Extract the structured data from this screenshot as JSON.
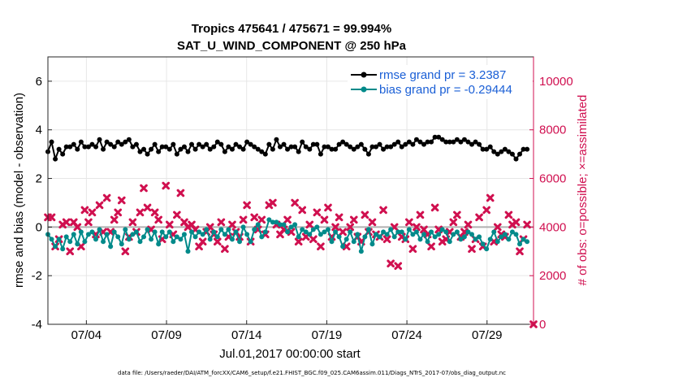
{
  "chart_data": {
    "type": "line",
    "title_line1": "Tropics 475641 / 475671 = 99.994%",
    "title_line2": "SAT_U_WIND_COMPONENT @ 250 hPa",
    "ylabel_left": "rmse and bias (model - observation)",
    "ylabel_right": "# of obs: o=possible; ×=assimilated",
    "xlabel": "Jul.01,2017 00:00:00 start",
    "footer": "data file: /Users/raeder/DAI/ATM_forcXX/CAM6_setup/f.e21.FHIST_BGC.f09_025.CAM6assim.011/Diags_NTrS_2017-07/obs_diag_output.nc",
    "xlim": [
      1.6,
      31.9
    ],
    "ylim_left": [
      -4,
      7
    ],
    "ylim_right": [
      0,
      11000
    ],
    "yticks_left": [
      -4,
      -2,
      0,
      2,
      4,
      6
    ],
    "yticks_right": [
      0,
      2000,
      4000,
      6000,
      8000,
      10000
    ],
    "xticks": [
      {
        "value": 4,
        "label": "07/04"
      },
      {
        "value": 9,
        "label": "07/09"
      },
      {
        "value": 14,
        "label": "07/14"
      },
      {
        "value": 19,
        "label": "07/19"
      },
      {
        "value": 24,
        "label": "07/24"
      },
      {
        "value": 29,
        "label": "07/29"
      }
    ],
    "grid": true,
    "legend_position": "top-right",
    "series": [
      {
        "name": "rmse grand pr = 3.2387",
        "axis": "left",
        "color": "#000000",
        "marker": "circle",
        "x": [
          1.6,
          1.83,
          2.06,
          2.29,
          2.52,
          2.75,
          2.98,
          3.21,
          3.44,
          3.67,
          3.9,
          4.13,
          4.36,
          4.59,
          4.82,
          5.05,
          5.28,
          5.51,
          5.74,
          5.97,
          6.2,
          6.43,
          6.66,
          6.89,
          7.12,
          7.35,
          7.58,
          7.81,
          8.04,
          8.27,
          8.5,
          8.73,
          8.96,
          9.19,
          9.42,
          9.65,
          9.88,
          10.11,
          10.34,
          10.57,
          10.8,
          11.03,
          11.26,
          11.49,
          11.72,
          11.95,
          12.18,
          12.41,
          12.64,
          12.87,
          13.1,
          13.33,
          13.56,
          13.79,
          14.02,
          14.25,
          14.48,
          14.71,
          14.94,
          15.17,
          15.4,
          15.63,
          15.86,
          16.09,
          16.32,
          16.55,
          16.78,
          17.01,
          17.24,
          17.47,
          17.7,
          17.93,
          18.16,
          18.39,
          18.62,
          18.85,
          19.08,
          19.31,
          19.54,
          19.77,
          20.0,
          20.23,
          20.46,
          20.69,
          20.92,
          21.15,
          21.38,
          21.61,
          21.84,
          22.07,
          22.3,
          22.53,
          22.76,
          22.99,
          23.22,
          23.45,
          23.68,
          23.91,
          24.14,
          24.37,
          24.6,
          24.83,
          25.06,
          25.29,
          25.52,
          25.75,
          25.98,
          26.21,
          26.44,
          26.67,
          26.9,
          27.13,
          27.36,
          27.59,
          27.82,
          28.05,
          28.28,
          28.51,
          28.74,
          28.97,
          29.2,
          29.43,
          29.66,
          29.89,
          30.12,
          30.35,
          30.58,
          30.81,
          31.04,
          31.27,
          31.5
        ],
        "values": [
          3.1,
          3.5,
          2.8,
          3.2,
          3.0,
          3.3,
          3.3,
          3.4,
          3.2,
          3.5,
          3.3,
          3.3,
          3.4,
          3.3,
          3.6,
          3.2,
          3.5,
          3.4,
          3.3,
          3.5,
          3.4,
          3.5,
          3.6,
          3.3,
          3.4,
          3.1,
          3.2,
          3.0,
          3.2,
          3.4,
          3.1,
          3.3,
          3.3,
          3.2,
          3.4,
          3.0,
          3.2,
          3.3,
          3.1,
          3.4,
          3.2,
          3.4,
          3.3,
          3.4,
          3.2,
          3.3,
          3.5,
          3.4,
          3.1,
          3.3,
          3.2,
          3.4,
          3.3,
          3.2,
          3.5,
          3.4,
          3.3,
          3.2,
          3.1,
          3.0,
          3.4,
          3.2,
          3.6,
          3.3,
          3.4,
          3.2,
          3.3,
          3.3,
          3.1,
          3.5,
          3.3,
          3.2,
          3.4,
          3.4,
          3.0,
          3.3,
          3.3,
          3.2,
          3.2,
          3.4,
          3.5,
          3.4,
          3.3,
          3.2,
          3.3,
          3.4,
          3.2,
          3.0,
          3.3,
          3.3,
          3.4,
          3.2,
          3.3,
          3.3,
          3.4,
          3.5,
          3.3,
          3.4,
          3.5,
          3.4,
          3.6,
          3.5,
          3.4,
          3.5,
          3.5,
          3.7,
          3.7,
          3.6,
          3.5,
          3.5,
          3.5,
          3.6,
          3.5,
          3.6,
          3.5,
          3.4,
          3.5,
          3.4,
          3.2,
          3.2,
          3.3,
          3.1,
          3.0,
          3.1,
          3.2,
          3.1,
          3.0,
          2.8,
          3.0,
          3.2,
          3.2
        ]
      },
      {
        "name": "bias grand pr = -0.29444",
        "axis": "left",
        "color": "#008a8a",
        "marker": "circle",
        "x": [
          1.6,
          1.83,
          2.06,
          2.29,
          2.52,
          2.75,
          2.98,
          3.21,
          3.44,
          3.67,
          3.9,
          4.13,
          4.36,
          4.59,
          4.82,
          5.05,
          5.28,
          5.51,
          5.74,
          5.97,
          6.2,
          6.43,
          6.66,
          6.89,
          7.12,
          7.35,
          7.58,
          7.81,
          8.04,
          8.27,
          8.5,
          8.73,
          8.96,
          9.19,
          9.42,
          9.65,
          9.88,
          10.11,
          10.34,
          10.57,
          10.8,
          11.03,
          11.26,
          11.49,
          11.72,
          11.95,
          12.18,
          12.41,
          12.64,
          12.87,
          13.1,
          13.33,
          13.56,
          13.79,
          14.02,
          14.25,
          14.48,
          14.71,
          14.94,
          15.17,
          15.4,
          15.63,
          15.86,
          16.09,
          16.32,
          16.55,
          16.78,
          17.01,
          17.24,
          17.47,
          17.7,
          17.93,
          18.16,
          18.39,
          18.62,
          18.85,
          19.08,
          19.31,
          19.54,
          19.77,
          20.0,
          20.23,
          20.46,
          20.69,
          20.92,
          21.15,
          21.38,
          21.61,
          21.84,
          22.07,
          22.3,
          22.53,
          22.76,
          22.99,
          23.22,
          23.45,
          23.68,
          23.91,
          24.14,
          24.37,
          24.6,
          24.83,
          25.06,
          25.29,
          25.52,
          25.75,
          25.98,
          26.21,
          26.44,
          26.67,
          26.9,
          27.13,
          27.36,
          27.59,
          27.82,
          28.05,
          28.28,
          28.51,
          28.74,
          28.97,
          29.2,
          29.43,
          29.66,
          29.89,
          30.12,
          30.35,
          30.58,
          30.81,
          31.04,
          31.27,
          31.5
        ],
        "values": [
          -0.3,
          -0.5,
          -0.8,
          -0.5,
          -0.9,
          -0.4,
          -0.6,
          -0.3,
          -0.7,
          -0.2,
          -0.6,
          -0.3,
          -0.2,
          -0.5,
          -0.1,
          -0.6,
          -0.3,
          -0.8,
          -0.2,
          -0.4,
          -0.7,
          -0.1,
          -0.5,
          -0.3,
          -0.2,
          -0.6,
          -0.4,
          -0.1,
          -0.5,
          -0.2,
          -0.7,
          -0.2,
          -0.4,
          -0.2,
          -0.6,
          -0.4,
          -0.5,
          -0.3,
          -1.0,
          -0.2,
          -0.4,
          -0.2,
          -0.3,
          -0.1,
          -0.5,
          -0.2,
          -0.4,
          -0.1,
          -0.3,
          -0.1,
          -0.5,
          -0.2,
          -0.6,
          0.0,
          -0.3,
          -0.6,
          -0.1,
          0.1,
          -0.4,
          -0.2,
          0.3,
          0.2,
          0.2,
          0.1,
          0.1,
          -0.2,
          0.0,
          0.1,
          -0.4,
          -0.1,
          -0.2,
          -0.3,
          -0.1,
          0.0,
          -0.3,
          -0.2,
          -0.1,
          -0.6,
          -0.2,
          -0.4,
          -0.8,
          -0.5,
          -0.2,
          -0.6,
          -0.3,
          -1.0,
          -0.4,
          -0.1,
          -0.7,
          -0.3,
          -0.4,
          -0.2,
          -0.3,
          -0.1,
          -0.4,
          -0.2,
          -0.2,
          -0.5,
          -0.1,
          -0.3,
          -0.2,
          -0.5,
          -0.3,
          -0.6,
          -0.2,
          -0.4,
          -0.3,
          -0.1,
          -0.2,
          -0.6,
          -0.3,
          -0.2,
          -0.5,
          -0.4,
          -0.2,
          -0.3,
          -0.5,
          -0.4,
          -0.7,
          -0.9,
          -0.5,
          -0.2,
          -0.6,
          -0.4,
          -0.3,
          -0.5,
          -0.2,
          -0.3,
          -0.7,
          -0.5,
          -0.6
        ]
      },
      {
        "name": "# of obs assimilated",
        "axis": "right",
        "color": "#d0104f",
        "marker": "cross",
        "x": [
          1.6,
          1.83,
          2.06,
          2.29,
          2.52,
          2.75,
          2.98,
          3.21,
          3.44,
          3.67,
          3.9,
          4.13,
          4.36,
          4.59,
          4.82,
          5.05,
          5.28,
          5.51,
          5.74,
          5.97,
          6.2,
          6.43,
          6.66,
          6.89,
          7.12,
          7.35,
          7.58,
          7.81,
          8.04,
          8.27,
          8.5,
          8.73,
          8.96,
          9.19,
          9.42,
          9.65,
          9.88,
          10.11,
          10.34,
          10.57,
          10.8,
          11.03,
          11.26,
          11.49,
          11.72,
          11.95,
          12.18,
          12.41,
          12.64,
          12.87,
          13.1,
          13.33,
          13.56,
          13.79,
          14.02,
          14.25,
          14.48,
          14.71,
          14.94,
          15.17,
          15.4,
          15.63,
          15.86,
          16.09,
          16.32,
          16.55,
          16.78,
          17.01,
          17.24,
          17.47,
          17.7,
          17.93,
          18.16,
          18.39,
          18.62,
          18.85,
          19.08,
          19.31,
          19.54,
          19.77,
          20.0,
          20.23,
          20.46,
          20.69,
          20.92,
          21.15,
          21.38,
          21.61,
          21.84,
          22.07,
          22.3,
          22.53,
          22.76,
          22.99,
          23.22,
          23.45,
          23.68,
          23.91,
          24.14,
          24.37,
          24.6,
          24.83,
          25.06,
          25.29,
          25.52,
          25.75,
          25.98,
          26.21,
          26.44,
          26.67,
          26.9,
          27.13,
          27.36,
          27.59,
          27.82,
          28.05,
          28.28,
          28.51,
          28.74,
          28.97,
          29.2,
          29.43,
          29.66,
          29.89,
          30.12,
          30.35,
          30.58,
          30.81,
          31.04,
          31.27,
          31.5,
          31.9
        ],
        "values": [
          4400,
          4400,
          3200,
          3500,
          4100,
          4200,
          3000,
          4200,
          4000,
          3200,
          4700,
          4200,
          4600,
          3700,
          4900,
          3800,
          5200,
          3800,
          4300,
          4600,
          5100,
          3000,
          3600,
          4200,
          3800,
          4600,
          5600,
          4800,
          3900,
          4600,
          4300,
          3500,
          5700,
          4100,
          3700,
          4500,
          5400,
          4200,
          4000,
          4100,
          3900,
          3200,
          3400,
          3800,
          4000,
          3700,
          3400,
          4200,
          3100,
          3600,
          4100,
          3800,
          3600,
          4300,
          4900,
          3400,
          4400,
          3900,
          4300,
          3700,
          4900,
          5000,
          4100,
          3700,
          3900,
          4300,
          3800,
          5000,
          3400,
          4700,
          3600,
          4100,
          3500,
          4600,
          3200,
          4300,
          4800,
          3600,
          4000,
          4400,
          3800,
          3200,
          4000,
          4300,
          3600,
          3400,
          4500,
          3800,
          4200,
          3700,
          3600,
          4700,
          3500,
          2500,
          4000,
          2400,
          3600,
          3500,
          4200,
          3100,
          4000,
          4500,
          3900,
          3700,
          3200,
          4800,
          3900,
          3400,
          3500,
          3800,
          4200,
          4500,
          3600,
          3800,
          4100,
          3100,
          3500,
          4400,
          3200,
          4700,
          5200,
          3400,
          4000,
          3700,
          3600,
          4500,
          4100,
          4200,
          3000,
          3500,
          4100,
          0
        ]
      }
    ]
  }
}
